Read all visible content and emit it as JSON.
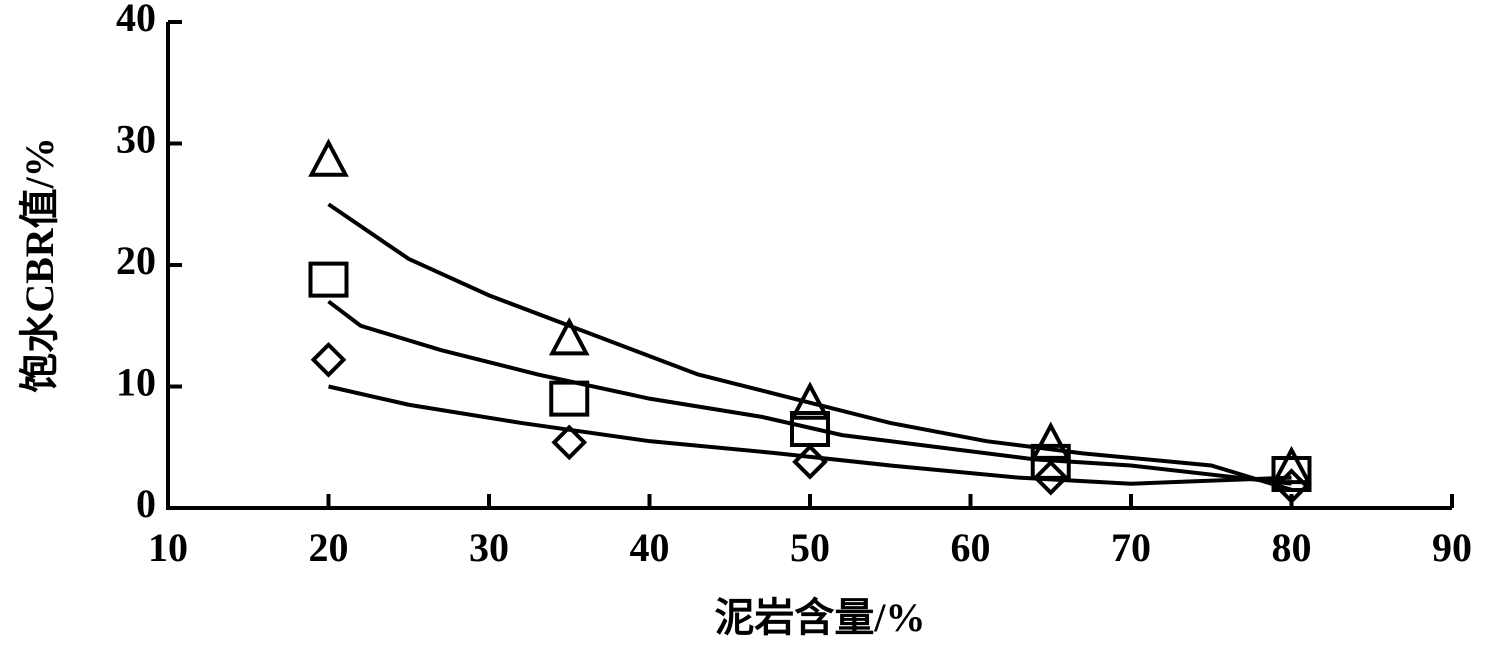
{
  "chart_data": {
    "type": "scatter",
    "x_label": "泥岩含量/%",
    "y_label": "饱水CBR值/%",
    "xlim": [
      10,
      90
    ],
    "xticks": [
      10,
      20,
      30,
      40,
      50,
      60,
      70,
      80,
      90
    ],
    "ylim": [
      0,
      40
    ],
    "yticks": [
      0,
      10,
      20,
      30,
      40
    ],
    "x": [
      20,
      35,
      50,
      65,
      80
    ],
    "series": [
      {
        "marker": "triangle",
        "color": "#000000",
        "values": [
          28.5,
          13.8,
          8.5,
          5.2,
          3.2
        ]
      },
      {
        "marker": "square",
        "color": "#000000",
        "values": [
          18.8,
          9,
          6.5,
          3.8,
          2.8
        ]
      },
      {
        "marker": "diamond",
        "color": "#000000",
        "values": [
          12.2,
          5.4,
          3.8,
          2.5,
          1.8
        ]
      }
    ],
    "fits": [
      {
        "color": "#000000",
        "x": [
          20,
          25,
          30,
          37,
          43,
          49,
          55,
          61,
          67,
          75,
          80
        ],
        "values": [
          25,
          20.5,
          17.5,
          14,
          11,
          9,
          7,
          5.5,
          4.5,
          3.5,
          1.5
        ]
      },
      {
        "color": "#000000",
        "x": [
          20,
          22,
          27,
          33,
          40,
          47,
          52,
          58,
          64,
          70,
          80
        ],
        "values": [
          17,
          15,
          13,
          11,
          9,
          7.5,
          6,
          5,
          4,
          3.5,
          2
        ]
      },
      {
        "color": "#000000",
        "x": [
          20,
          25,
          32,
          40,
          48,
          55,
          63,
          70,
          80
        ],
        "values": [
          10,
          8.5,
          7,
          5.5,
          4.5,
          3.5,
          2.5,
          2,
          2.5
        ]
      }
    ]
  }
}
